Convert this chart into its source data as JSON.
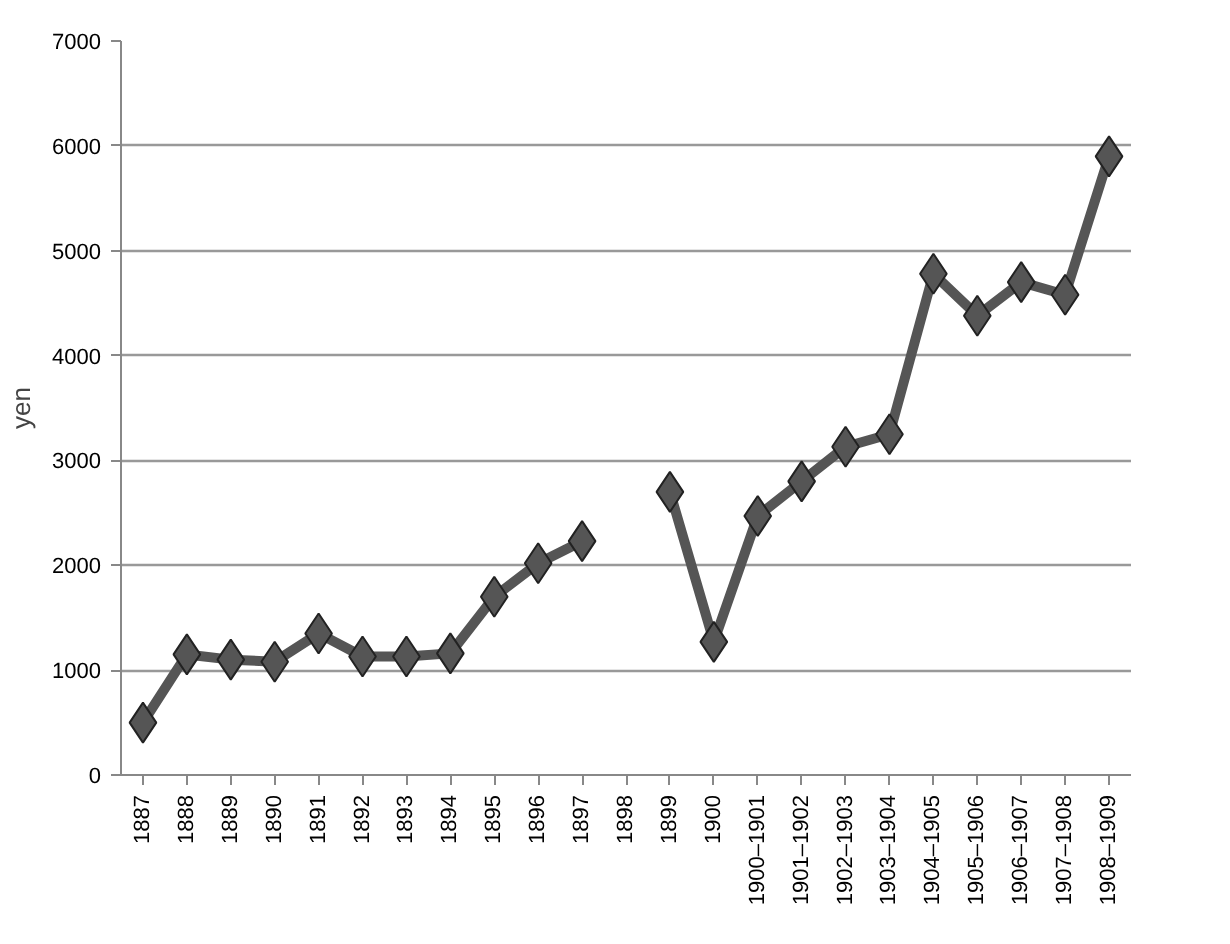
{
  "chart_data": {
    "type": "line",
    "ylabel": "yen",
    "categories": [
      "1887",
      "1888",
      "1889",
      "1890",
      "1891",
      "1892",
      "1893",
      "1894",
      "1895",
      "1896",
      "1897",
      "1898",
      "1899",
      "1900",
      "1900–1901",
      "1901–1902",
      "1902–1903",
      "1903–1904",
      "1904–1905",
      "1905–1906",
      "1906–1907",
      "1907–1908",
      "1908–1909"
    ],
    "series": [
      {
        "color": "#555555",
        "values": [
          500,
          1150,
          1100,
          1080,
          1350,
          1130,
          1130,
          1160,
          1700,
          2020,
          2230,
          null,
          2700,
          1270,
          2470,
          2800,
          3130,
          3250,
          4780,
          4380,
          4700,
          4580,
          5900
        ]
      }
    ],
    "ylim": [
      0,
      7000
    ],
    "yticks": [
      0,
      1000,
      2000,
      3000,
      4000,
      5000,
      6000,
      7000
    ],
    "grid": "y",
    "marker": "diamond",
    "line_style": "solid"
  }
}
